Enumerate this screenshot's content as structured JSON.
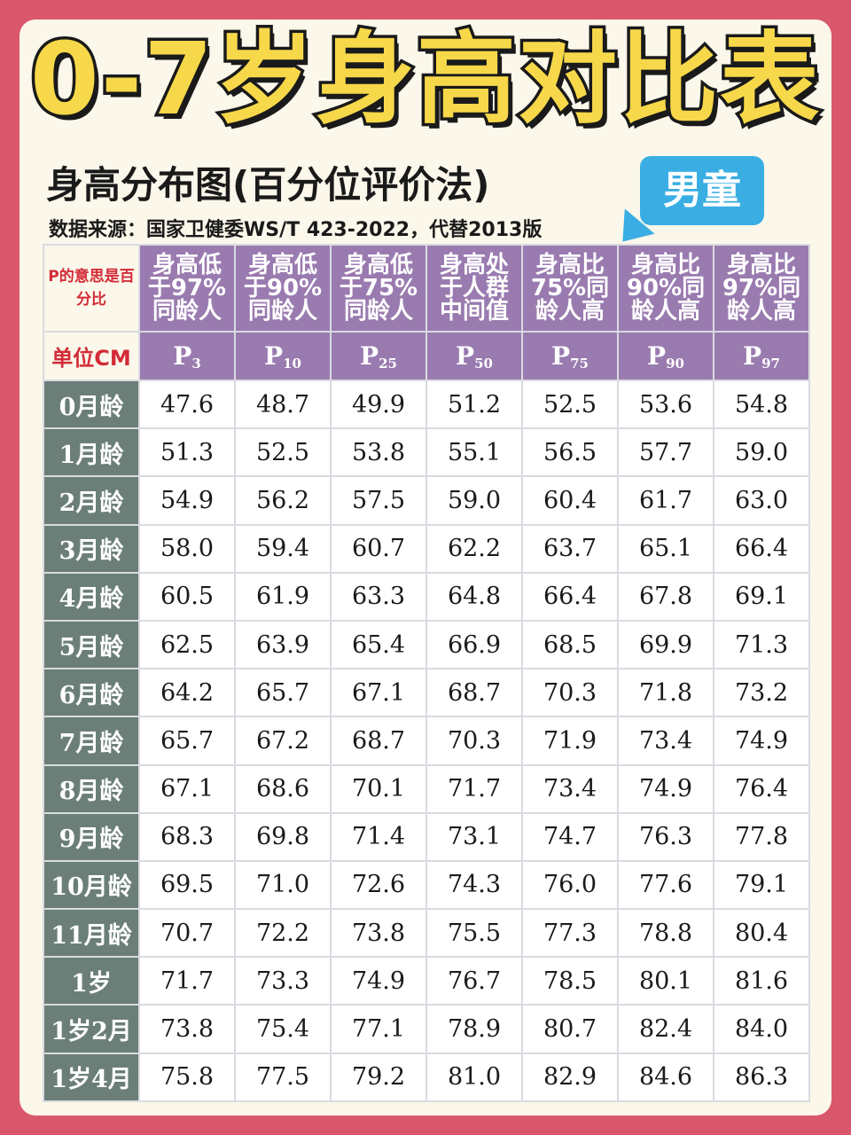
{
  "title": "0-7岁身高对比表",
  "subtitle": "身高分布图(百分位评价法)",
  "source": "数据来源：国家卫健委WS/T 423-2022，代替2013版",
  "badge": "男童",
  "table": {
    "corner_note": "P的意思是百分比",
    "unit_label": "单位CM",
    "column_descriptions": [
      "身高低于97%同龄人",
      "身高低于90%同龄人",
      "身高低于75%同龄人",
      "身高处于人群中间值",
      "身高比75%同龄人高",
      "身高比90%同龄人高",
      "身高比97%同龄人高"
    ],
    "percentiles": [
      {
        "p": "P",
        "sub": "3"
      },
      {
        "p": "P",
        "sub": "10"
      },
      {
        "p": "P",
        "sub": "25"
      },
      {
        "p": "P",
        "sub": "50"
      },
      {
        "p": "P",
        "sub": "75"
      },
      {
        "p": "P",
        "sub": "90"
      },
      {
        "p": "P",
        "sub": "97"
      }
    ],
    "rows": [
      {
        "age": "0月龄",
        "values": [
          "47.6",
          "48.7",
          "49.9",
          "51.2",
          "52.5",
          "53.6",
          "54.8"
        ]
      },
      {
        "age": "1月龄",
        "values": [
          "51.3",
          "52.5",
          "53.8",
          "55.1",
          "56.5",
          "57.7",
          "59.0"
        ]
      },
      {
        "age": "2月龄",
        "values": [
          "54.9",
          "56.2",
          "57.5",
          "59.0",
          "60.4",
          "61.7",
          "63.0"
        ]
      },
      {
        "age": "3月龄",
        "values": [
          "58.0",
          "59.4",
          "60.7",
          "62.2",
          "63.7",
          "65.1",
          "66.4"
        ]
      },
      {
        "age": "4月龄",
        "values": [
          "60.5",
          "61.9",
          "63.3",
          "64.8",
          "66.4",
          "67.8",
          "69.1"
        ]
      },
      {
        "age": "5月龄",
        "values": [
          "62.5",
          "63.9",
          "65.4",
          "66.9",
          "68.5",
          "69.9",
          "71.3"
        ]
      },
      {
        "age": "6月龄",
        "values": [
          "64.2",
          "65.7",
          "67.1",
          "68.7",
          "70.3",
          "71.8",
          "73.2"
        ]
      },
      {
        "age": "7月龄",
        "values": [
          "65.7",
          "67.2",
          "68.7",
          "70.3",
          "71.9",
          "73.4",
          "74.9"
        ]
      },
      {
        "age": "8月龄",
        "values": [
          "67.1",
          "68.6",
          "70.1",
          "71.7",
          "73.4",
          "74.9",
          "76.4"
        ]
      },
      {
        "age": "9月龄",
        "values": [
          "68.3",
          "69.8",
          "71.4",
          "73.1",
          "74.7",
          "76.3",
          "77.8"
        ]
      },
      {
        "age": "10月龄",
        "values": [
          "69.5",
          "71.0",
          "72.6",
          "74.3",
          "76.0",
          "77.6",
          "79.1"
        ]
      },
      {
        "age": "11月龄",
        "values": [
          "70.7",
          "72.2",
          "73.8",
          "75.5",
          "77.3",
          "78.8",
          "80.4"
        ]
      },
      {
        "age": "1岁",
        "values": [
          "71.7",
          "73.3",
          "74.9",
          "76.7",
          "78.5",
          "80.1",
          "81.6"
        ]
      },
      {
        "age": "1岁2月",
        "values": [
          "73.8",
          "75.4",
          "77.1",
          "78.9",
          "80.7",
          "82.4",
          "84.0"
        ]
      },
      {
        "age": "1岁4月",
        "values": [
          "75.8",
          "77.5",
          "79.2",
          "81.0",
          "82.9",
          "84.6",
          "86.3"
        ]
      }
    ]
  }
}
